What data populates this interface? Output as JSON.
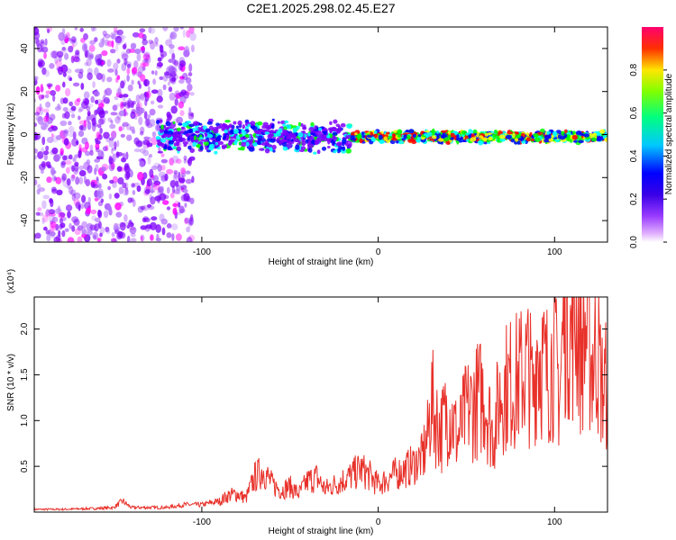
{
  "title": "C2E1.2025.298.02.45.E27",
  "colorbar": {
    "label": "Normalized spectral amplitude",
    "ticks": [
      "0.0",
      "0.2",
      "0.4",
      "0.6",
      "0.8"
    ],
    "tick_values": [
      0.0,
      0.2,
      0.4,
      0.6,
      0.8
    ],
    "range": [
      0.0,
      1.0
    ]
  },
  "chart_data": [
    {
      "type": "heatmap",
      "xlabel": "Height of straight line (km)",
      "ylabel": "Frequency (Hz)",
      "xlim": [
        -195,
        130
      ],
      "ylim": [
        -50,
        50
      ],
      "x_ticks": [
        -100,
        0,
        100
      ],
      "y_ticks": [
        -40,
        -20,
        0,
        20,
        40
      ],
      "colorscale": [
        "#ff00ff",
        "#8000ff",
        "#0000ff",
        "#00ffff",
        "#00ff00",
        "#ffff00",
        "#ff0000",
        "#ff0066"
      ],
      "description_regions": [
        {
          "x_range": [
            -195,
            -105
          ],
          "level": "low",
          "spread_hz": 50
        },
        {
          "x_range": [
            -125,
            -15
          ],
          "level": "medium",
          "spread_hz": 8
        },
        {
          "x_range": [
            -15,
            130
          ],
          "level": "high",
          "spread_hz": 3
        }
      ]
    },
    {
      "type": "line",
      "xlabel": "Height of straight line (km)",
      "ylabel": "SNR (10 * v/v)",
      "y_multiplier_label": "(x10⁴)",
      "xlim": [
        -195,
        130
      ],
      "ylim": [
        0,
        2.35
      ],
      "x_ticks": [
        -100,
        0,
        100
      ],
      "y_ticks": [
        0.5,
        1.0,
        1.5,
        2.0
      ],
      "y_tick_labels": [
        "0.5",
        "1.0",
        "1.5",
        "2.0"
      ],
      "series": [
        {
          "color": "#e8312a",
          "x": [
            -195,
            -180,
            -160,
            -150,
            -145,
            -140,
            -120,
            -110,
            -100,
            -90,
            -85,
            -80,
            -75,
            -70,
            -65,
            -60,
            -55,
            -50,
            -45,
            -40,
            -35,
            -30,
            -25,
            -20,
            -15,
            -10,
            -5,
            0,
            5,
            10,
            15,
            20,
            25,
            28,
            30,
            33,
            36,
            40,
            45,
            50,
            55,
            60,
            65,
            70,
            75,
            80,
            85,
            88,
            90,
            95,
            100,
            103,
            105,
            107,
            109,
            112,
            115,
            118,
            121,
            124,
            127,
            130
          ],
          "y": [
            0.03,
            0.03,
            0.04,
            0.05,
            0.12,
            0.05,
            0.05,
            0.08,
            0.08,
            0.12,
            0.18,
            0.2,
            0.15,
            0.38,
            0.46,
            0.3,
            0.24,
            0.28,
            0.2,
            0.34,
            0.38,
            0.25,
            0.3,
            0.35,
            0.4,
            0.47,
            0.4,
            0.3,
            0.36,
            0.42,
            0.46,
            0.52,
            0.6,
            0.8,
            1.22,
            1.0,
            0.9,
            1.15,
            0.8,
            1.1,
            1.2,
            1.3,
            0.85,
            1.35,
            1.4,
            1.45,
            1.6,
            1.25,
            1.85,
            1.5,
            1.7,
            1.3,
            2.05,
            2.35,
            1.9,
            2.2,
            1.75,
            2.0,
            1.65,
            1.8,
            1.35,
            1.4
          ]
        }
      ]
    }
  ]
}
